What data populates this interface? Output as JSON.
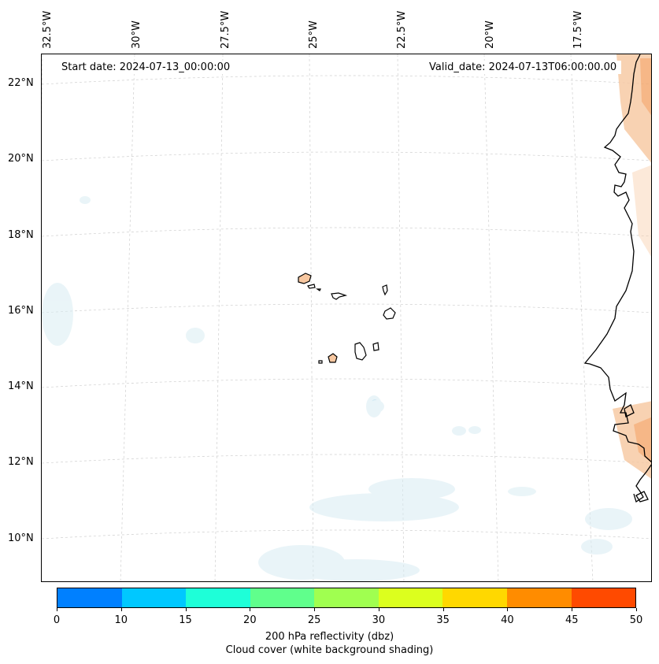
{
  "map": {
    "start_date": "Start date: 2024-07-13_00:00:00",
    "valid_date": "Valid_date: 2024-07-13T06:00:00.00",
    "longitude_labels": [
      "32.5°W",
      "30°W",
      "27.5°W",
      "25°W",
      "22.5°W",
      "20°W",
      "17.5°W"
    ],
    "latitude_labels": [
      "22°N",
      "20°N",
      "18°N",
      "16°N",
      "14°N",
      "12°N",
      "10°N"
    ],
    "extent": {
      "lon_min": -32.5,
      "lon_max": -15.8,
      "lat_min": 8.9,
      "lat_max": 22.8
    },
    "gridlines": true,
    "features": [
      "Cape Verde islands",
      "West African coastline"
    ]
  },
  "colorbar": {
    "ticks": [
      "0",
      "10",
      "15",
      "20",
      "25",
      "30",
      "35",
      "40",
      "45",
      "50"
    ],
    "colors": [
      "#0080ff",
      "#00c8ff",
      "#1effd8",
      "#60ff8c",
      "#a0ff50",
      "#dcff1e",
      "#ffd800",
      "#ff8c00",
      "#ff4a00"
    ],
    "label_line1": "200 hPa reflectivity (dbz)",
    "label_line2": "Cloud cover (white background shading)"
  },
  "style": {
    "cloud_color": "#d8ecf3",
    "reflectivity_land_color": "#f7c7a0",
    "coast_color": "#000000",
    "grid_color": "#cfcfcf"
  }
}
